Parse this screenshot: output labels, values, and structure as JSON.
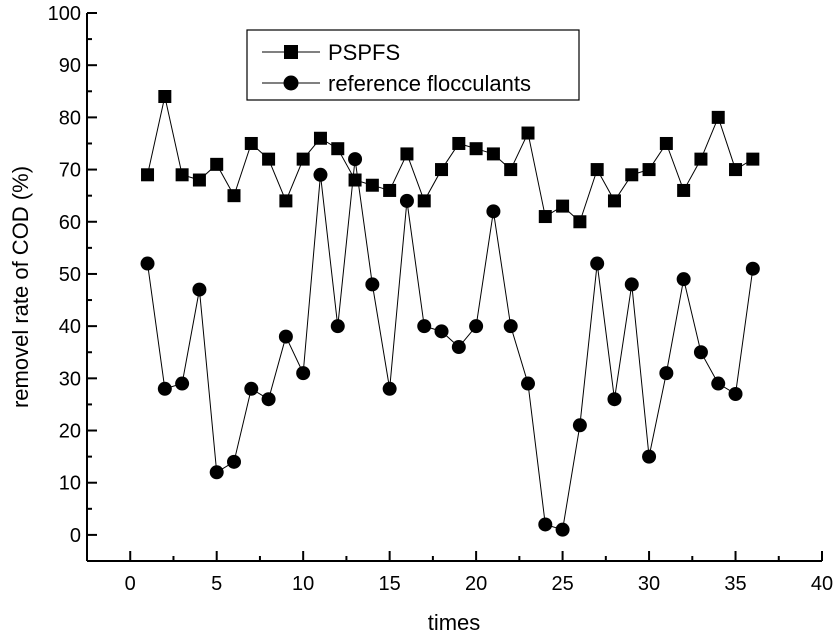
{
  "chart_data": {
    "type": "line",
    "title": "",
    "xlabel": "times",
    "ylabel": "removel rate of COD (%)",
    "xlim": [
      -2.5,
      40
    ],
    "ylim": [
      -5,
      100
    ],
    "xticks": [
      0,
      5,
      10,
      15,
      20,
      25,
      30,
      35,
      40
    ],
    "yticks": [
      0,
      10,
      20,
      30,
      40,
      50,
      60,
      70,
      80,
      90,
      100
    ],
    "x": [
      1,
      2,
      3,
      4,
      5,
      6,
      7,
      8,
      9,
      10,
      11,
      12,
      13,
      14,
      15,
      16,
      17,
      18,
      19,
      20,
      21,
      22,
      23,
      24,
      25,
      26,
      27,
      28,
      29,
      30,
      31,
      32,
      33,
      34,
      35,
      36
    ],
    "series": [
      {
        "name": "PSPFS",
        "marker": "square",
        "values": [
          69,
          84,
          69,
          68,
          71,
          65,
          75,
          72,
          64,
          72,
          76,
          74,
          68,
          67,
          66,
          73,
          64,
          70,
          75,
          74,
          73,
          70,
          77,
          61,
          63,
          60,
          70,
          64,
          69,
          70,
          75,
          66,
          72,
          80,
          70,
          72
        ]
      },
      {
        "name": "reference flocculants",
        "marker": "circle",
        "values": [
          52,
          28,
          29,
          47,
          12,
          14,
          28,
          26,
          38,
          31,
          69,
          40,
          72,
          48,
          28,
          64,
          40,
          39,
          36,
          40,
          62,
          40,
          29,
          2,
          1,
          21,
          52,
          26,
          48,
          15,
          31,
          49,
          35,
          29,
          27,
          51
        ]
      }
    ],
    "legend": {
      "position": "top-center",
      "entries": [
        "PSPFS",
        "reference flocculants"
      ]
    },
    "grid": false,
    "colors": {
      "line": "#000000",
      "marker": "#000000"
    }
  }
}
